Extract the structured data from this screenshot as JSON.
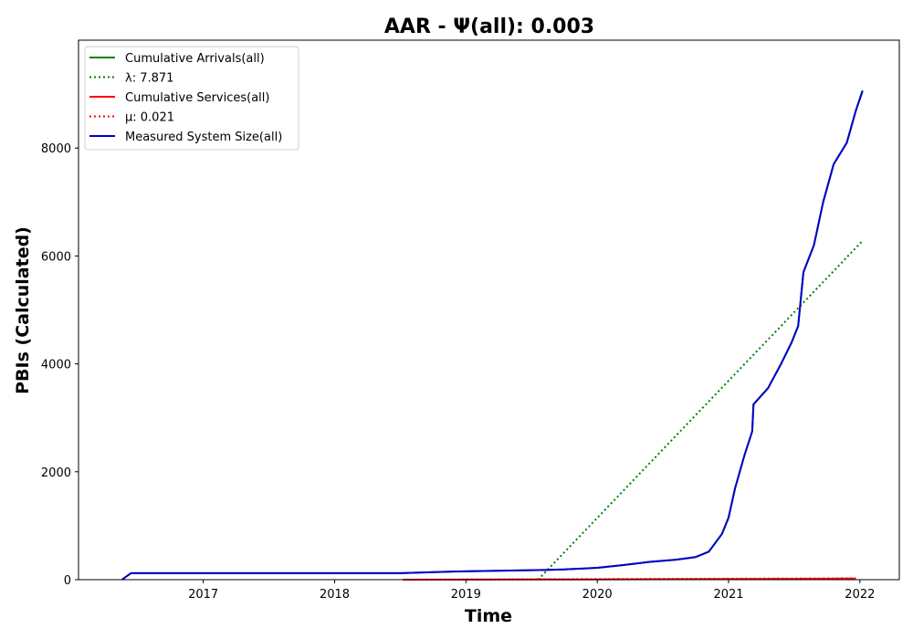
{
  "chart_data": {
    "type": "line",
    "title": "AAR -  Ψ(all): 0.003",
    "xlabel": "Time",
    "ylabel": "PBIs (Calculated)",
    "xlim": [
      2016.05,
      2022.3
    ],
    "ylim": [
      0,
      10000
    ],
    "x_ticks": [
      2017,
      2018,
      2019,
      2020,
      2021,
      2022
    ],
    "x_tick_labels": [
      "2017",
      "2018",
      "2019",
      "2020",
      "2021",
      "2022"
    ],
    "y_ticks": [
      0,
      2000,
      4000,
      6000,
      8000
    ],
    "y_tick_labels": [
      "0",
      "2000",
      "4000",
      "6000",
      "8000"
    ],
    "grid": false,
    "legend_position": "top-left",
    "series": [
      {
        "name": "Cumulative Arrivals(all)",
        "color": "#008000",
        "style": "solid",
        "x": [
          2016.38,
          2016.42,
          2016.45,
          2018.5,
          2018.9,
          2019.6,
          2019.75,
          2020.0,
          2020.2,
          2020.4,
          2020.6,
          2020.75,
          2020.85,
          2020.95,
          2021.0,
          2021.05,
          2021.12,
          2021.18,
          2021.19,
          2021.3,
          2021.4,
          2021.48,
          2021.53,
          2021.57,
          2021.65,
          2021.72,
          2021.8,
          2021.9,
          2021.97,
          2022.02
        ],
        "values": [
          0,
          70,
          120,
          120,
          150,
          180,
          190,
          220,
          270,
          330,
          370,
          420,
          520,
          850,
          1150,
          1700,
          2300,
          2750,
          3250,
          3550,
          4000,
          4400,
          4700,
          5700,
          6200,
          7000,
          7700,
          8100,
          8700,
          9070
        ]
      },
      {
        "name": "λ: 7.871",
        "color": "#008000",
        "style": "dotted",
        "x": [
          2019.55,
          2022.02
        ],
        "values": [
          0,
          6280
        ]
      },
      {
        "name": "Cumulative Services(all)",
        "color": "#ff0000",
        "style": "solid",
        "x": [
          2018.52,
          2019.5,
          2020.5,
          2021.5,
          2021.97
        ],
        "values": [
          0,
          3,
          8,
          15,
          22
        ]
      },
      {
        "name": "μ: 0.021",
        "color": "#ff0000",
        "style": "dotted",
        "x": [
          2018.52,
          2021.97
        ],
        "values": [
          0,
          26
        ]
      },
      {
        "name": "Measured System Size(all)",
        "color": "#0000cc",
        "style": "solid",
        "x": [
          2016.38,
          2016.42,
          2016.45,
          2018.5,
          2018.9,
          2019.6,
          2019.75,
          2020.0,
          2020.2,
          2020.4,
          2020.6,
          2020.75,
          2020.85,
          2020.95,
          2021.0,
          2021.05,
          2021.12,
          2021.18,
          2021.19,
          2021.3,
          2021.4,
          2021.48,
          2021.53,
          2021.57,
          2021.65,
          2021.72,
          2021.8,
          2021.9,
          2021.97,
          2022.02
        ],
        "values": [
          0,
          70,
          120,
          120,
          150,
          180,
          190,
          220,
          270,
          330,
          370,
          420,
          520,
          850,
          1150,
          1700,
          2300,
          2750,
          3250,
          3550,
          4000,
          4400,
          4700,
          5700,
          6200,
          7000,
          7700,
          8100,
          8700,
          9050
        ]
      }
    ]
  }
}
